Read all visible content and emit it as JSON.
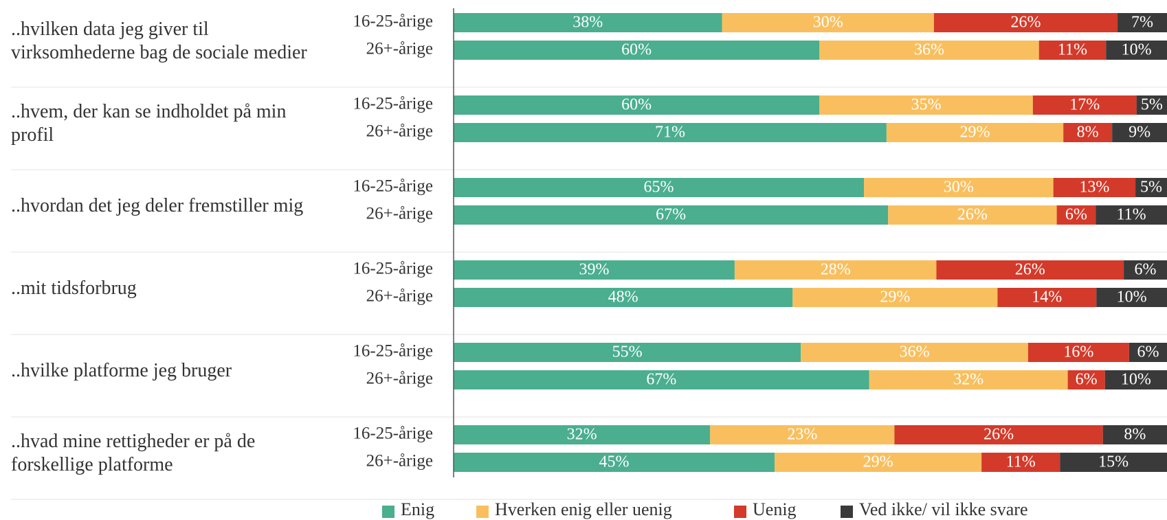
{
  "chart_data": {
    "type": "stacked-bar",
    "questions": [
      "..hvilken data jeg giver til virksomhederne bag de sociale medier",
      "..hvem, der kan se indholdet på min profil",
      "..hvordan det jeg deler fremstiller mig",
      "..mit tidsforbrug",
      "..hvilke platforme jeg bruger",
      "..hvad mine rettigheder er på de forskellige platforme"
    ],
    "groups": [
      "16-25-årige",
      "26+-årige"
    ],
    "series": [
      {
        "name": "Enig",
        "color": "#4aae8f",
        "values": [
          38,
          60,
          60,
          71,
          65,
          67,
          39,
          48,
          55,
          67,
          32,
          45
        ],
        "value_labels": [
          "38%",
          "60%",
          "60%",
          "71%",
          "65%",
          "67%",
          "39%",
          "48%",
          "55%",
          "67%",
          "32%",
          "45%"
        ]
      },
      {
        "name": "Hverken enig eller uenig",
        "color": "#f9bf5e",
        "values": [
          30,
          36,
          35,
          29,
          30,
          26,
          28,
          29,
          36,
          32,
          23,
          29
        ],
        "value_labels": [
          "30%",
          "36%",
          "35%",
          "29%",
          "30%",
          "26%",
          "28%",
          "29%",
          "36%",
          "32%",
          "23%",
          "29%"
        ]
      },
      {
        "name": "Uenig",
        "color": "#d33a2a",
        "values": [
          26,
          11,
          17,
          8,
          13,
          6,
          26,
          14,
          16,
          6,
          26,
          11
        ],
        "value_labels": [
          "26%",
          "11%",
          "17%",
          "8%",
          "13%",
          "6%",
          "26%",
          "14%",
          "16%",
          "6%",
          "26%",
          "11%"
        ]
      },
      {
        "name": "Ved ikke/ vil ikke svare",
        "color": "#3a3a3a",
        "values": [
          7,
          10,
          5,
          9,
          5,
          11,
          6,
          10,
          6,
          10,
          8,
          15
        ],
        "value_labels": [
          "7%",
          "10%",
          "5%",
          "9%",
          "5%",
          "11%",
          "6%",
          "10%",
          "6%",
          "10%",
          "8%",
          "15%"
        ]
      }
    ]
  }
}
